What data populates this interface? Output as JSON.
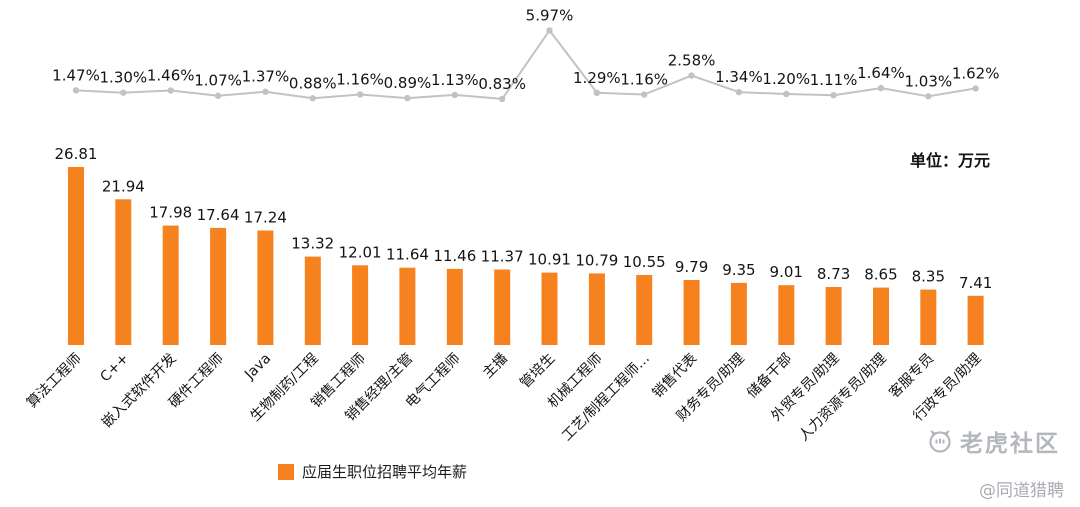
{
  "chart_data": {
    "type": "bar",
    "title": "",
    "unit": "单位：万元",
    "legend_label": "应届生职位招聘平均年薪",
    "categories": [
      "算法工程师",
      "C++",
      "嵌入式软件开发",
      "硬件工程师",
      "Java",
      "生物制药/工程",
      "销售工程师",
      "销售经理/主管",
      "电气工程师",
      "主播",
      "管培生",
      "机械工程师",
      "工艺/制程工程师…",
      "销售代表",
      "财务专员/助理",
      "储备干部",
      "外贸专员/助理",
      "人力资源专员/助理",
      "客服专员",
      "行政专员/助理"
    ],
    "bar_values": [
      26.81,
      21.94,
      17.98,
      17.64,
      17.24,
      13.32,
      12.01,
      11.64,
      11.46,
      11.37,
      10.91,
      10.79,
      10.55,
      9.79,
      9.35,
      9.01,
      8.73,
      8.65,
      8.35,
      7.41
    ],
    "line_percent": [
      1.47,
      1.3,
      1.46,
      1.07,
      1.37,
      0.88,
      1.16,
      0.89,
      1.13,
      0.83,
      5.97,
      1.29,
      1.16,
      2.58,
      1.34,
      1.2,
      1.11,
      1.64,
      1.03,
      1.62
    ],
    "bar_color": "#F5821F",
    "line_color": "#C2C2C2",
    "label_color": "#141414",
    "ylim_bar": [
      0,
      28
    ],
    "ylim_line_percent": [
      0,
      6
    ],
    "grid": "off",
    "legend_position": "bottom"
  },
  "watermark": {
    "community": "老虎社区",
    "handle": "@同道猎聘"
  }
}
